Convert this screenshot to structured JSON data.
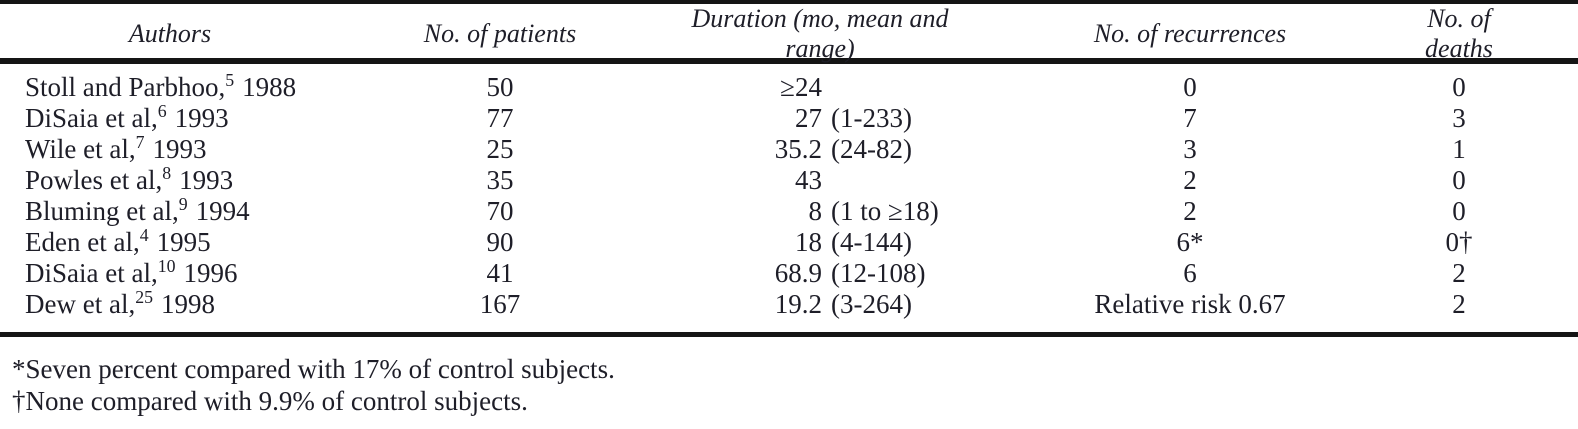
{
  "table": {
    "headers": {
      "authors": "Authors",
      "patients": "No. of patients",
      "duration": "Duration (mo, mean and range)",
      "recurrences": "No. of recurrences",
      "deaths": "No. of deaths"
    },
    "rows": [
      {
        "author": "Stoll and Parbhoo,",
        "ref": "5",
        "year": "1988",
        "patients": "50",
        "dur_num": "≥24",
        "dur_range": "",
        "recurrences": "0",
        "deaths": "0"
      },
      {
        "author": "DiSaia et al,",
        "ref": "6",
        "year": "1993",
        "patients": "77",
        "dur_num": "27",
        "dur_range": "(1-233)",
        "recurrences": "7",
        "deaths": "3"
      },
      {
        "author": "Wile et al,",
        "ref": "7",
        "year": "1993",
        "patients": "25",
        "dur_num": "35.2",
        "dur_range": "(24-82)",
        "recurrences": "3",
        "deaths": "1"
      },
      {
        "author": "Powles et al,",
        "ref": "8",
        "year": "1993",
        "patients": "35",
        "dur_num": "43",
        "dur_range": "",
        "recurrences": "2",
        "deaths": "0"
      },
      {
        "author": "Bluming et al,",
        "ref": "9",
        "year": "1994",
        "patients": "70",
        "dur_num": "8",
        "dur_range": "(1 to ≥18)",
        "recurrences": "2",
        "deaths": "0"
      },
      {
        "author": "Eden et al,",
        "ref": "4",
        "year": "1995",
        "patients": "90",
        "dur_num": "18",
        "dur_range": "(4-144)",
        "recurrences": "6*",
        "deaths": "0†"
      },
      {
        "author": "DiSaia et al,",
        "ref": "10",
        "year": "1996",
        "patients": "41",
        "dur_num": "68.9",
        "dur_range": "(12-108)",
        "recurrences": "6",
        "deaths": "2"
      },
      {
        "author": "Dew et al,",
        "ref": "25",
        "year": "1998",
        "patients": "167",
        "dur_num": "19.2",
        "dur_range": "(3-264)",
        "recurrences": "Relative risk 0.67",
        "deaths": "2"
      }
    ],
    "footnotes": [
      "*Seven percent compared with 17% of control subjects.",
      "†None compared with 9.9% of control subjects."
    ]
  },
  "colors": {
    "text": "#1e1e28",
    "rule": "#151515",
    "background": "#ffffff"
  }
}
